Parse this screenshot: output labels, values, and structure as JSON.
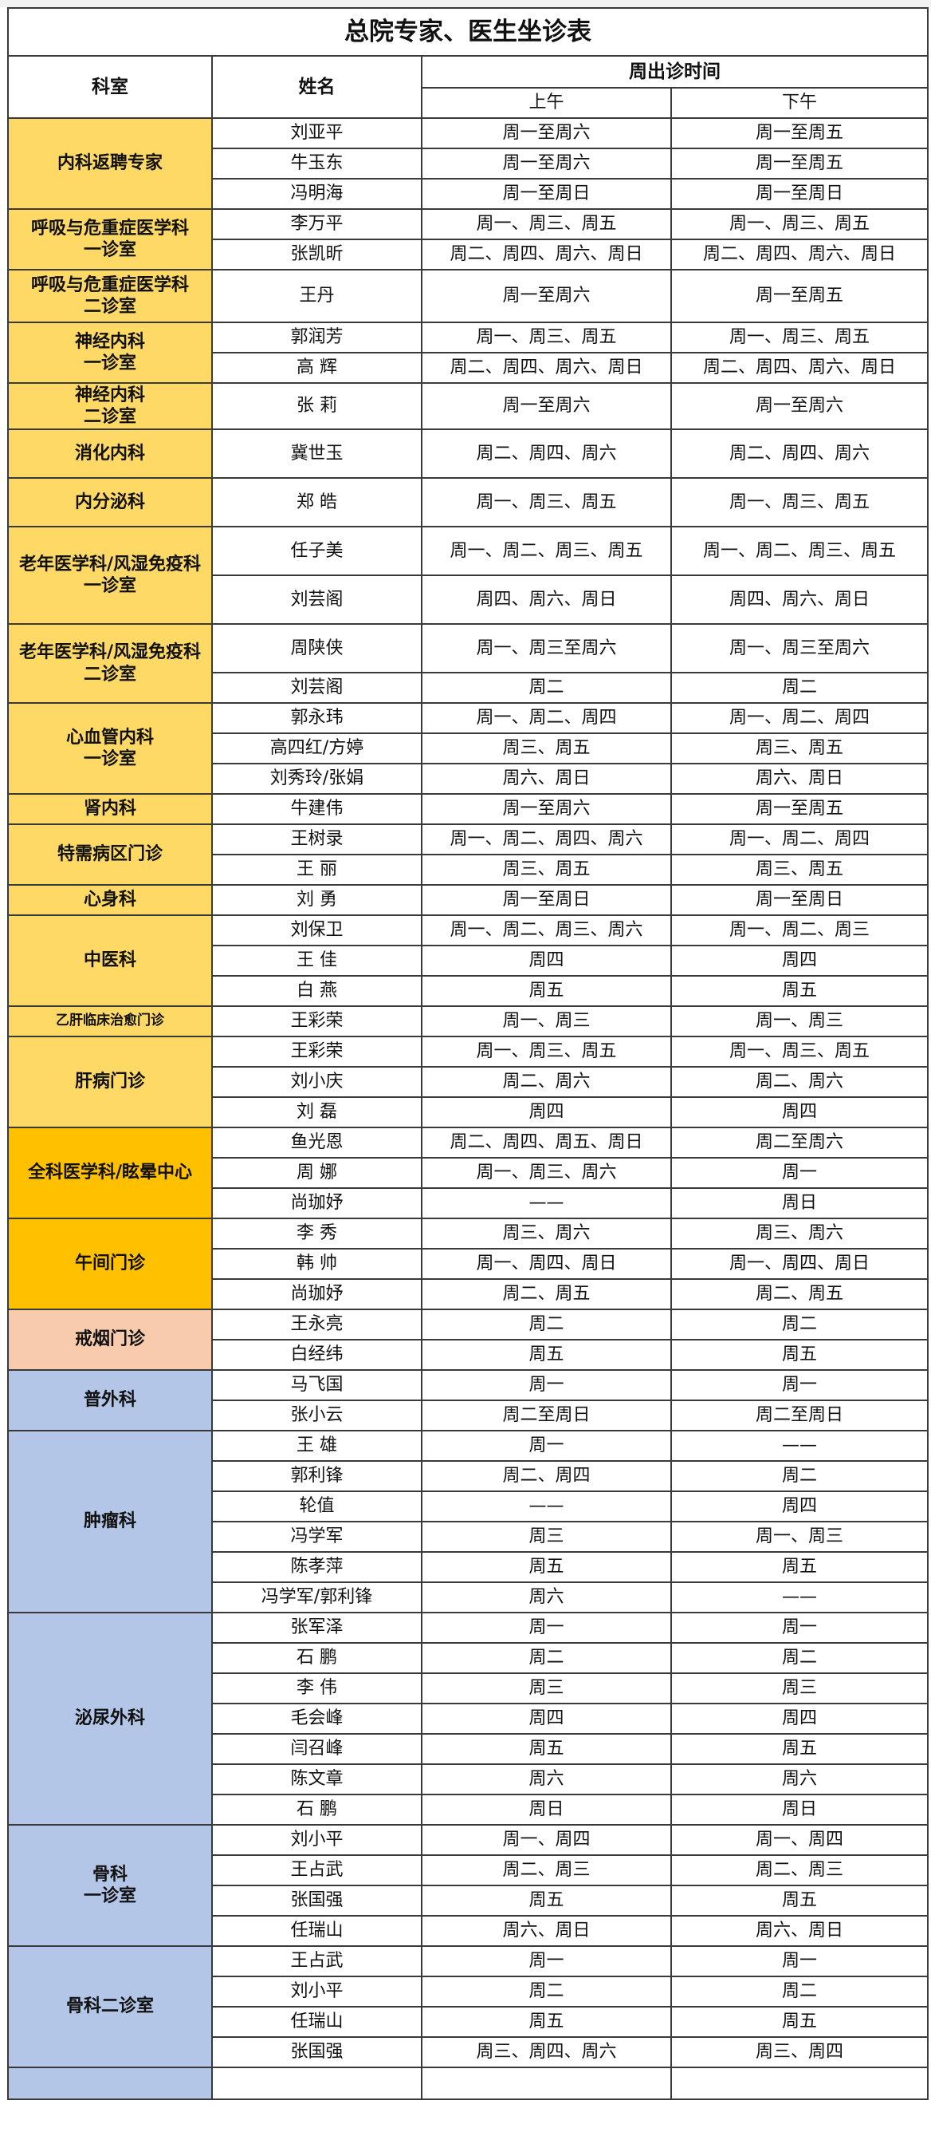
{
  "title": "总院专家、医生坐诊表",
  "headers": {
    "department": "科室",
    "name": "姓名",
    "weekly": "周出诊时间",
    "am": "上午",
    "pm": "下午"
  },
  "colors": {
    "yellow": "#FFD966",
    "orange": "#FFC000",
    "peach": "#F8CBAD",
    "blue": "#B4C6E7"
  },
  "groups": [
    {
      "dept": "内科返聘专家",
      "color": "yellow",
      "rows": [
        [
          "刘亚平",
          "周一至周六",
          "周一至周五"
        ],
        [
          "牛玉东",
          "周一至周六",
          "周一至周五"
        ],
        [
          "冯明海",
          "周一至周日",
          "周一至周日"
        ]
      ]
    },
    {
      "dept": "呼吸与危重症医学科\n一诊室",
      "color": "yellow",
      "rows": [
        [
          "李万平",
          "周一、周三、周五",
          "周一、周三、周五"
        ],
        [
          "张凯昕",
          "周二、周四、周六、周日",
          "周二、周四、周六、周日"
        ]
      ]
    },
    {
      "dept": "呼吸与危重症医学科\n二诊室",
      "color": "yellow",
      "rows": [
        [
          "王丹",
          "周一至周六",
          "周一至周五"
        ]
      ]
    },
    {
      "dept": "神经内科\n一诊室",
      "color": "yellow",
      "rows": [
        [
          "郭润芳",
          "周一、周三、周五",
          "周一、周三、周五"
        ],
        [
          "高  辉",
          "周二、周四、周六、周日",
          "周二、周四、周六、周日"
        ]
      ]
    },
    {
      "dept": "神经内科\n二诊室",
      "color": "yellow",
      "rows": [
        [
          "张 莉",
          "周一至周六",
          "周一至周六"
        ]
      ]
    },
    {
      "dept": "消化内科",
      "color": "yellow",
      "rows": [
        [
          "冀世玉",
          "周二、周四、周六",
          "周二、周四、周六"
        ]
      ]
    },
    {
      "dept": "内分泌科",
      "color": "yellow",
      "rows": [
        [
          "郑 皓",
          "周一、周三、周五",
          "周一、周三、周五"
        ]
      ]
    },
    {
      "dept": "老年医学科/风湿免疫科\n一诊室",
      "color": "yellow",
      "rows": [
        [
          "任子美",
          "周一、周二、周三、周五",
          "周一、周二、周三、周五"
        ],
        [
          "刘芸阁",
          "周四、周六、周日",
          "周四、周六、周日"
        ]
      ]
    },
    {
      "dept": "老年医学科/风湿免疫科\n二诊室",
      "color": "yellow",
      "rows": [
        [
          "周陕侠",
          "周一、周三至周六",
          "周一、周三至周六"
        ],
        [
          "刘芸阁",
          "周二",
          "周二"
        ]
      ]
    },
    {
      "dept": "心血管内科\n一诊室",
      "color": "yellow",
      "rows": [
        [
          "郭永玮",
          "周一、周二、周四",
          "周一、周二、周四"
        ],
        [
          "高四红/方婷",
          "周三、周五",
          "周三、周五"
        ],
        [
          "刘秀玲/张娟",
          "周六、周日",
          "周六、周日"
        ]
      ]
    },
    {
      "dept": "肾内科",
      "color": "yellow",
      "rows": [
        [
          "牛建伟",
          "周一至周六",
          "周一至周五"
        ]
      ]
    },
    {
      "dept": "特需病区门诊",
      "color": "yellow",
      "rows": [
        [
          "王树录",
          "周一、周二、周四、周六",
          "周一、周二、周四"
        ],
        [
          "王 丽",
          "周三、周五",
          "周三、周五"
        ]
      ]
    },
    {
      "dept": "心身科",
      "color": "yellow",
      "rows": [
        [
          "刘 勇",
          "周一至周日",
          "周一至周日"
        ]
      ]
    },
    {
      "dept": "中医科",
      "color": "yellow",
      "rows": [
        [
          "刘保卫",
          "周一、周二、周三、周六",
          "周一、周二、周三"
        ],
        [
          "王 佳",
          "周四",
          "周四"
        ],
        [
          "白 燕",
          "周五",
          "周五"
        ]
      ]
    },
    {
      "dept": "乙肝临床治愈门诊",
      "color": "yellow",
      "small": true,
      "rows": [
        [
          "王彩荣",
          "周一、周三",
          "周一、周三"
        ]
      ]
    },
    {
      "dept": "肝病门诊",
      "color": "yellow",
      "rows": [
        [
          "王彩荣",
          "周一、周三、周五",
          "周一、周三、周五"
        ],
        [
          "刘小庆",
          "周二、周六",
          "周二、周六"
        ],
        [
          "刘 磊",
          "周四",
          "周四"
        ]
      ]
    },
    {
      "dept": "全科医学科/眩晕中心",
      "color": "orange",
      "rows": [
        [
          "鱼光恩",
          "周二、周四、周五、周日",
          "周二至周六"
        ],
        [
          "周 娜",
          "周一、周三、周六",
          "周一"
        ],
        [
          "尚珈妤",
          "——",
          "周日"
        ]
      ]
    },
    {
      "dept": "午间门诊",
      "color": "orange",
      "rows": [
        [
          "李 秀",
          "周三、周六",
          "周三、周六"
        ],
        [
          "韩 帅",
          "周一、周四、周日",
          "周一、周四、周日"
        ],
        [
          "尚珈妤",
          "周二、周五",
          "周二、周五"
        ]
      ]
    },
    {
      "dept": "戒烟门诊",
      "color": "peach",
      "rows": [
        [
          "王永亮",
          "周二",
          "周二"
        ],
        [
          "白经纬",
          "周五",
          "周五"
        ]
      ]
    },
    {
      "dept": "普外科",
      "color": "blue",
      "rows": [
        [
          "马飞国",
          "周一",
          "周一"
        ],
        [
          "张小云",
          "周二至周日",
          "周二至周日"
        ]
      ]
    },
    {
      "dept": "肿瘤科",
      "color": "blue",
      "rows": [
        [
          "王 雄",
          "周一",
          "——"
        ],
        [
          "郭利锋",
          "周二、周四",
          "周二"
        ],
        [
          "轮值",
          "——",
          "周四"
        ],
        [
          "冯学军",
          "周三",
          "周一、周三"
        ],
        [
          "陈孝萍",
          "周五",
          "周五"
        ],
        [
          "冯学军/郭利锋",
          "周六",
          "——"
        ]
      ]
    },
    {
      "dept": "泌尿外科",
      "color": "blue",
      "rows": [
        [
          "张军泽",
          "周一",
          "周一"
        ],
        [
          "石 鹏",
          "周二",
          "周二"
        ],
        [
          "李 伟",
          "周三",
          "周三"
        ],
        [
          "毛会峰",
          "周四",
          "周四"
        ],
        [
          "闫召峰",
          "周五",
          "周五"
        ],
        [
          "陈文章",
          "周六",
          "周六"
        ],
        [
          "石 鹏",
          "周日",
          "周日"
        ]
      ]
    },
    {
      "dept": "骨科\n一诊室",
      "color": "blue",
      "rows": [
        [
          "刘小平",
          "周一、周四",
          "周一、周四"
        ],
        [
          "王占武",
          "周二、周三",
          "周二、周三"
        ],
        [
          "张国强",
          "周五",
          "周五"
        ],
        [
          "任瑞山",
          "周六、周日",
          "周六、周日"
        ]
      ]
    },
    {
      "dept": "骨科二诊室",
      "color": "blue",
      "rows": [
        [
          "王占武",
          "周一",
          "周一"
        ],
        [
          "刘小平",
          "周二",
          "周二"
        ],
        [
          "任瑞山",
          "周五",
          "周五"
        ],
        [
          "张国强",
          "周三、周四、周六",
          "周三、周四"
        ]
      ]
    }
  ]
}
